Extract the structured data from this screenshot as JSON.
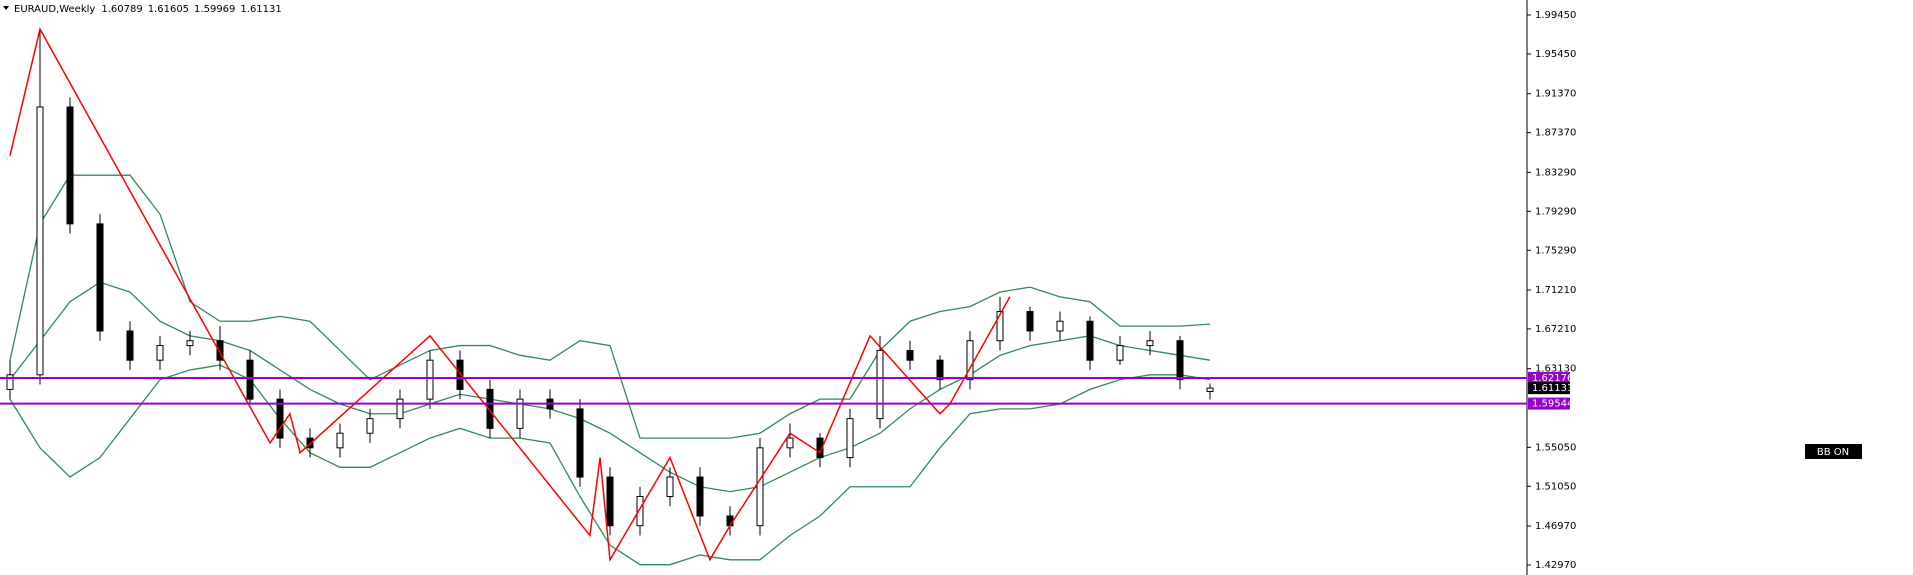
{
  "chart_data": {
    "type": "candlestick",
    "title": "EURAUD,Weekly",
    "xlim": [
      -0.3333,
      50.5667
    ],
    "ylim": [
      1.4194,
      2.0099
    ],
    "yticks": [
      {
        "value": 1.9945,
        "label": "1.99450"
      },
      {
        "value": 1.9545,
        "label": "1.95450"
      },
      {
        "value": 1.9137,
        "label": "1.91370"
      },
      {
        "value": 1.8737,
        "label": "1.87370"
      },
      {
        "value": 1.8329,
        "label": "1.83290"
      },
      {
        "value": 1.7929,
        "label": "1.79290"
      },
      {
        "value": 1.7529,
        "label": "1.75290"
      },
      {
        "value": 1.7121,
        "label": "1.71210"
      },
      {
        "value": 1.6721,
        "label": "1.67210"
      },
      {
        "value": 1.6313,
        "label": "1.63130"
      },
      {
        "value": 1.5505,
        "label": "1.55050"
      },
      {
        "value": 1.5105,
        "label": "1.51050"
      },
      {
        "value": 1.4697,
        "label": "1.46970"
      },
      {
        "value": 1.4297,
        "label": "1.42970"
      }
    ],
    "up_color": "#ffffff",
    "down_color": "#000000",
    "open": [
      1.61,
      1.625,
      1.9,
      1.78,
      1.67,
      1.64,
      1.655,
      1.66,
      1.64,
      1.6,
      1.56,
      1.55,
      1.565,
      1.58,
      1.6,
      1.64,
      1.61,
      1.57,
      1.6,
      1.59,
      1.52,
      1.47,
      1.5,
      1.52,
      1.48,
      1.47,
      1.55,
      1.56,
      1.54,
      1.58,
      1.65,
      1.64,
      1.62,
      1.66,
      1.69,
      1.67,
      1.68,
      1.64,
      1.655,
      1.66,
      1.60789
    ],
    "high": [
      1.64,
      1.98,
      1.91,
      1.79,
      1.68,
      1.665,
      1.67,
      1.675,
      1.65,
      1.61,
      1.57,
      1.575,
      1.59,
      1.61,
      1.65,
      1.65,
      1.62,
      1.61,
      1.61,
      1.6,
      1.53,
      1.51,
      1.53,
      1.53,
      1.49,
      1.56,
      1.575,
      1.565,
      1.59,
      1.665,
      1.66,
      1.645,
      1.67,
      1.705,
      1.695,
      1.69,
      1.685,
      1.665,
      1.67,
      1.665,
      1.61605
    ],
    "low": [
      1.6,
      1.615,
      1.77,
      1.66,
      1.63,
      1.63,
      1.645,
      1.63,
      1.595,
      1.55,
      1.54,
      1.54,
      1.555,
      1.57,
      1.59,
      1.6,
      1.56,
      1.56,
      1.58,
      1.51,
      1.46,
      1.46,
      1.49,
      1.47,
      1.46,
      1.46,
      1.54,
      1.53,
      1.53,
      1.57,
      1.63,
      1.61,
      1.61,
      1.65,
      1.66,
      1.66,
      1.63,
      1.635,
      1.645,
      1.61,
      1.59969
    ],
    "close": [
      1.625,
      1.9,
      1.78,
      1.67,
      1.64,
      1.655,
      1.66,
      1.64,
      1.6,
      1.56,
      1.55,
      1.565,
      1.58,
      1.6,
      1.64,
      1.61,
      1.57,
      1.6,
      1.59,
      1.52,
      1.47,
      1.5,
      1.52,
      1.48,
      1.47,
      1.55,
      1.56,
      1.54,
      1.58,
      1.65,
      1.64,
      1.62,
      1.66,
      1.69,
      1.67,
      1.68,
      1.64,
      1.655,
      1.66,
      1.62,
      1.61131
    ],
    "bollinger": {
      "color": "#2e8b57",
      "upper": [
        1.64,
        1.78,
        1.83,
        1.83,
        1.83,
        1.79,
        1.7,
        1.68,
        1.68,
        1.685,
        1.68,
        1.65,
        1.62,
        1.635,
        1.65,
        1.655,
        1.655,
        1.645,
        1.64,
        1.66,
        1.655,
        1.56,
        1.56,
        1.56,
        1.56,
        1.565,
        1.585,
        1.6,
        1.6,
        1.65,
        1.68,
        1.69,
        1.695,
        1.71,
        1.715,
        1.705,
        1.7,
        1.675,
        1.675,
        1.675,
        1.677
      ],
      "middle": [
        1.62,
        1.66,
        1.7,
        1.72,
        1.71,
        1.68,
        1.665,
        1.66,
        1.65,
        1.63,
        1.61,
        1.595,
        1.585,
        1.585,
        1.595,
        1.605,
        1.6,
        1.595,
        1.59,
        1.58,
        1.565,
        1.545,
        1.525,
        1.51,
        1.505,
        1.51,
        1.525,
        1.54,
        1.55,
        1.565,
        1.59,
        1.61,
        1.625,
        1.645,
        1.655,
        1.66,
        1.665,
        1.655,
        1.65,
        1.645,
        1.64
      ],
      "lower": [
        1.6,
        1.55,
        1.52,
        1.54,
        1.58,
        1.62,
        1.63,
        1.635,
        1.62,
        1.58,
        1.545,
        1.53,
        1.53,
        1.545,
        1.56,
        1.57,
        1.56,
        1.56,
        1.555,
        1.5,
        1.45,
        1.43,
        1.43,
        1.44,
        1.435,
        1.435,
        1.46,
        1.48,
        1.51,
        1.51,
        1.51,
        1.55,
        1.585,
        1.59,
        1.59,
        1.595,
        1.61,
        1.62,
        1.625,
        1.625,
        1.62
      ]
    },
    "zigzag": {
      "color": "#ff0000",
      "x": [
        0,
        1,
        8.67,
        9.33,
        9.67,
        14,
        19.33,
        19.67,
        20,
        22,
        23.33,
        24,
        26,
        27,
        28.67,
        31,
        31.33,
        33.33
      ],
      "y": [
        1.85,
        1.98,
        1.555,
        1.585,
        1.545,
        1.665,
        1.46,
        1.54,
        1.435,
        1.54,
        1.435,
        1.47,
        1.565,
        1.545,
        1.665,
        1.585,
        1.595,
        1.705
      ]
    },
    "levels": [
      {
        "value": 1.62176,
        "color": "#9900cc"
      },
      {
        "value": 1.59544,
        "color": "#9900cc"
      }
    ],
    "button_label": "BB ON"
  }
}
